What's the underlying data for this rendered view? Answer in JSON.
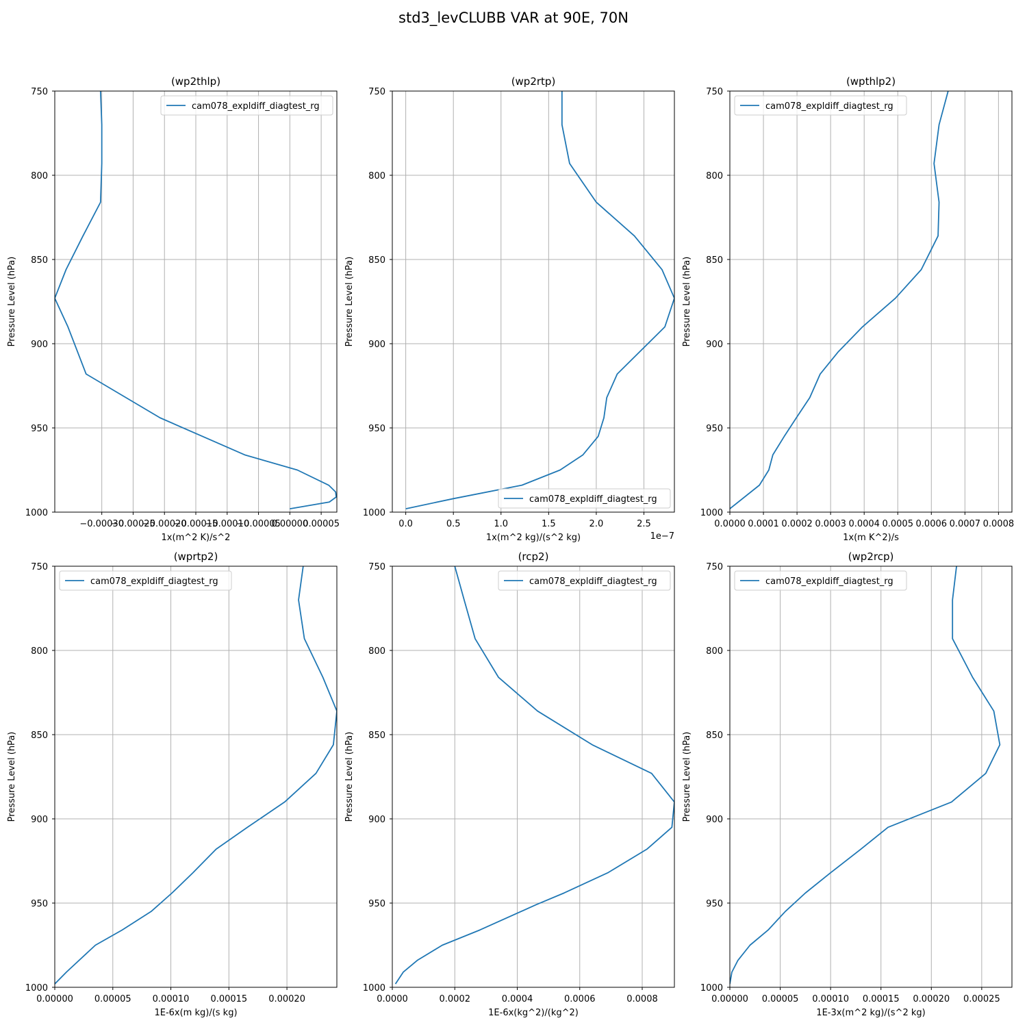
{
  "figure_title": "std3_levCLUBB VAR at 90E, 70N",
  "colors": {
    "line": "#1f77b4",
    "grid": "#b0b0b0",
    "axis": "#000000"
  },
  "chart_data": [
    {
      "type": "line",
      "title": "(wp2thlp)",
      "xlabel": "1x(m^2 K)/s^2",
      "ylabel": "Pressure Level (hPa)",
      "xlim": [
        -0.000375,
        7.5e-05
      ],
      "ylim": [
        1000,
        750
      ],
      "xticks": [
        -0.0003,
        -0.00025,
        -0.0002,
        -0.00015,
        -0.0001,
        -5e-05,
        0.0,
        5e-05
      ],
      "xticklabels": [
        "−0.00030",
        "−0.00025",
        "−0.00020",
        "−0.00015",
        "−0.00010",
        "−0.00005",
        "0.00000",
        "0.00005"
      ],
      "xoffset": "",
      "yticks": [
        750,
        800,
        850,
        900,
        950,
        1000
      ],
      "yticklabels": [
        "750",
        "800",
        "850",
        "900",
        "950",
        "1000"
      ],
      "grid": true,
      "legend": {
        "position": "top-right",
        "entries": [
          "cam078_expldiff_diagtest_rg"
        ]
      },
      "series": [
        {
          "name": "cam078_expldiff_diagtest_rg",
          "x": [
            -0.000302,
            -0.0003,
            -0.0003,
            -0.000302,
            -0.00033,
            -0.000357,
            -0.000375,
            -0.000354,
            -0.000325,
            -0.000207,
            -7.2e-05,
            1.2e-05,
            6.2e-05,
            7.3e-05,
            7.4e-05,
            6.3e-05,
            0.0
          ],
          "y": [
            750,
            770,
            793,
            816,
            836,
            856,
            873,
            890,
            918,
            944,
            966,
            975,
            984,
            988,
            991,
            994,
            998
          ]
        }
      ]
    },
    {
      "type": "line",
      "title": "(wp2rtp)",
      "xlabel": "1x(m^2 kg)/(s^2 kg)",
      "ylabel": "Pressure Level (hPa)",
      "xlim": [
        -1.41e-08,
        2.82e-07
      ],
      "ylim": [
        1000,
        750
      ],
      "xticks": [
        0.0,
        5e-08,
        1e-07,
        1.5e-07,
        2e-07,
        2.5e-07
      ],
      "xticklabels": [
        "0.0",
        "0.5",
        "1.0",
        "1.5",
        "2.0",
        "2.5"
      ],
      "xoffset": "1e−7",
      "yticks": [
        750,
        800,
        850,
        900,
        950,
        1000
      ],
      "yticklabels": [
        "750",
        "800",
        "850",
        "900",
        "950",
        "1000"
      ],
      "grid": true,
      "legend": {
        "position": "bottom-right",
        "entries": [
          "cam078_expldiff_diagtest_rg"
        ]
      },
      "series": [
        {
          "name": "cam078_expldiff_diagtest_rg",
          "x": [
            1.64e-07,
            1.64e-07,
            1.72e-07,
            2e-07,
            2.4e-07,
            2.69e-07,
            2.82e-07,
            2.72e-07,
            2.22e-07,
            2.11e-07,
            2.08e-07,
            2.02e-07,
            1.86e-07,
            1.62e-07,
            1.22e-07,
            5e-08,
            0.0
          ],
          "y": [
            750,
            770,
            793,
            816,
            836,
            856,
            873,
            890,
            918,
            932,
            944,
            955,
            966,
            975,
            984,
            992,
            998
          ]
        }
      ]
    },
    {
      "type": "line",
      "title": "(wpthlp2)",
      "xlabel": "1x(m K^2)/s",
      "ylabel": "Pressure Level (hPa)",
      "xlim": [
        0.0,
        0.00084
      ],
      "ylim": [
        1000,
        750
      ],
      "xticks": [
        0.0,
        0.0001,
        0.0002,
        0.0003,
        0.0004,
        0.0005,
        0.0006,
        0.0007,
        0.0008
      ],
      "xticklabels": [
        "0.0000",
        "0.0001",
        "0.0002",
        "0.0003",
        "0.0004",
        "0.0005",
        "0.0006",
        "0.0007",
        "0.0008"
      ],
      "xoffset": "",
      "yticks": [
        750,
        800,
        850,
        900,
        950,
        1000
      ],
      "yticklabels": [
        "750",
        "800",
        "850",
        "900",
        "950",
        "1000"
      ],
      "grid": true,
      "legend": {
        "position": "top-left",
        "entries": [
          "cam078_expldiff_diagtest_rg"
        ]
      },
      "series": [
        {
          "name": "cam078_expldiff_diagtest_rg",
          "x": [
            0.00065,
            0.000623,
            0.000608,
            0.000623,
            0.00062,
            0.00057,
            0.000493,
            0.000395,
            0.000322,
            0.000269,
            0.000238,
            0.000198,
            0.000162,
            0.000128,
            0.000116,
            8.8e-05,
            0.0
          ],
          "y": [
            750,
            770,
            793,
            816,
            836,
            856,
            873,
            890,
            905,
            918,
            932,
            944,
            955,
            966,
            975,
            984,
            998
          ]
        }
      ]
    },
    {
      "type": "line",
      "title": "(wprtp2)",
      "xlabel": "1E-6x(m kg)/(s kg)",
      "ylabel": "Pressure Level (hPa)",
      "xlim": [
        0.0,
        0.000243
      ],
      "ylim": [
        1000,
        750
      ],
      "xticks": [
        0.0,
        5e-05,
        0.0001,
        0.00015,
        0.0002
      ],
      "xticklabels": [
        "0.00000",
        "0.00005",
        "0.00010",
        "0.00015",
        "0.00020"
      ],
      "xoffset": "",
      "yticks": [
        750,
        800,
        850,
        900,
        950,
        1000
      ],
      "yticklabels": [
        "750",
        "800",
        "850",
        "900",
        "950",
        "1000"
      ],
      "grid": true,
      "legend": {
        "position": "top-left",
        "entries": [
          "cam078_expldiff_diagtest_rg"
        ]
      },
      "series": [
        {
          "name": "cam078_expldiff_diagtest_rg",
          "x": [
            0.000214,
            0.00021,
            0.000215,
            0.000231,
            0.000243,
            0.00024,
            0.000225,
            0.000198,
            0.000166,
            0.000139,
            0.000119,
            0.000101,
            8.3e-05,
            5.8e-05,
            3.5e-05,
            1e-05,
            0.0
          ],
          "y": [
            750,
            770,
            793,
            816,
            836,
            856,
            873,
            890,
            905,
            918,
            932,
            944,
            955,
            966,
            975,
            991,
            998
          ]
        }
      ]
    },
    {
      "type": "line",
      "title": "(rcp2)",
      "xlabel": "1E-6x(kg^2)/(kg^2)",
      "ylabel": "Pressure Level (hPa)",
      "xlim": [
        0.0,
        0.000903
      ],
      "ylim": [
        1000,
        750
      ],
      "xticks": [
        0.0,
        0.0002,
        0.0004,
        0.0006,
        0.0008
      ],
      "xticklabels": [
        "0.0000",
        "0.0002",
        "0.0004",
        "0.0006",
        "0.0008"
      ],
      "xoffset": "",
      "yticks": [
        750,
        800,
        850,
        900,
        950,
        1000
      ],
      "yticklabels": [
        "750",
        "800",
        "850",
        "900",
        "950",
        "1000"
      ],
      "grid": true,
      "legend": {
        "position": "top-right",
        "entries": [
          "cam078_expldiff_diagtest_rg"
        ]
      },
      "series": [
        {
          "name": "cam078_expldiff_diagtest_rg",
          "x": [
            0.0002,
            0.00023,
            0.000265,
            0.00034,
            0.000465,
            0.00064,
            0.00083,
            0.000903,
            0.000895,
            0.000815,
            0.00069,
            0.00055,
            0.00046,
            0.00028,
            0.00016,
            8e-05,
            3.5e-05,
            1e-05
          ],
          "y": [
            750,
            770,
            793,
            816,
            836,
            856,
            873,
            890,
            905,
            918,
            932,
            944,
            951,
            966,
            975,
            984,
            991,
            998
          ]
        }
      ]
    },
    {
      "type": "line",
      "title": "(wp2rcp)",
      "xlabel": "1E-3x(m^2 kg)/(s^2 kg)",
      "ylabel": "Pressure Level (hPa)",
      "xlim": [
        0.0,
        0.00028
      ],
      "ylim": [
        1000,
        750
      ],
      "xticks": [
        0.0,
        5e-05,
        0.0001,
        0.00015,
        0.0002,
        0.00025
      ],
      "xticklabels": [
        "0.00000",
        "0.00005",
        "0.00010",
        "0.00015",
        "0.00020",
        "0.00025"
      ],
      "xoffset": "",
      "yticks": [
        750,
        800,
        850,
        900,
        950,
        1000
      ],
      "yticklabels": [
        "750",
        "800",
        "850",
        "900",
        "950",
        "1000"
      ],
      "grid": true,
      "legend": {
        "position": "top-left",
        "entries": [
          "cam078_expldiff_diagtest_rg"
        ]
      },
      "series": [
        {
          "name": "cam078_expldiff_diagtest_rg",
          "x": [
            0.000225,
            0.000221,
            0.000221,
            0.000241,
            0.000262,
            0.000268,
            0.000254,
            0.00022,
            0.000157,
            0.00013,
            0.0001,
            7.5e-05,
            5.5e-05,
            3.8e-05,
            2e-05,
            8e-06,
            2e-06,
            0.0
          ],
          "y": [
            750,
            770,
            793,
            816,
            836,
            856,
            873,
            890,
            905,
            918,
            932,
            944,
            955,
            966,
            975,
            984,
            991,
            998
          ]
        }
      ]
    }
  ]
}
